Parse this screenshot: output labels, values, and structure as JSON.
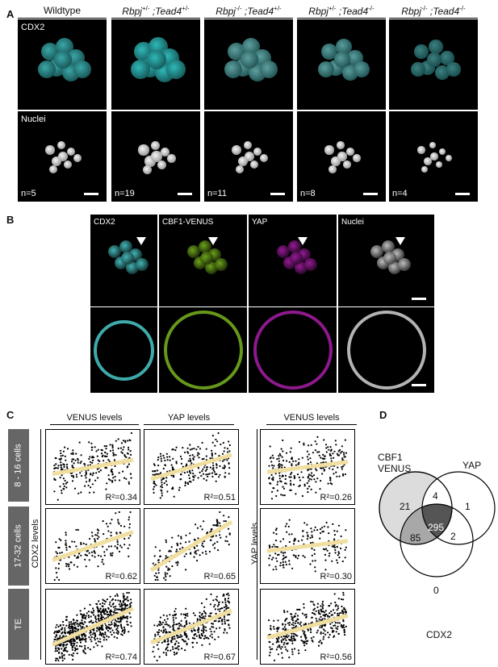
{
  "panelA": {
    "letter": "A",
    "genotypes": [
      {
        "g1": "Wildtype",
        "s1": "",
        "g2": "",
        "s2": ""
      },
      {
        "g1": "Rbpj",
        "s1": "+/-",
        "g2": " ;Tead4",
        "s2": "+/-"
      },
      {
        "g1": "Rbpj",
        "s1": "-/-",
        "g2": " ;Tead4",
        "s2": "+/-"
      },
      {
        "g1": "Rbpj",
        "s1": "+/-",
        "g2": " ;Tead4",
        "s2": "-/-"
      },
      {
        "g1": "Rbpj",
        "s1": "-/-",
        "g2": " ;Tead4",
        "s2": "-/-"
      }
    ],
    "row1_label": "CDX2",
    "row2_label": "Nuclei",
    "counts": [
      "n=5",
      "n=19",
      "n=11",
      "n=8",
      "n=4"
    ]
  },
  "panelB": {
    "letter": "B",
    "channels": [
      "CDX2",
      "CBF1-VENUS",
      "YAP",
      "Nuclei"
    ],
    "colors": {
      "cdx2": "#4fd4d4",
      "venus": "#7fbf1f",
      "yap": "#b01fb0",
      "nuclei": "#e0e0e0"
    }
  },
  "panelC": {
    "letter": "C",
    "col_heads": [
      "VENUS levels",
      "YAP levels",
      "VENUS levels"
    ],
    "row_labels": [
      "8 - 16 cells",
      "17-32 cells",
      "TE"
    ],
    "y_axis_left": "CDX2 levels",
    "y_axis_right": "YAP levels",
    "r2_values": [
      [
        "R²=0.34",
        "R²=0.51",
        "R²=0.26"
      ],
      [
        "R²=0.62",
        "R²=0.65",
        "R²=0.30"
      ],
      [
        "R²=0.74",
        "R²=0.67",
        "R²=0.56"
      ]
    ],
    "fit_color": "#f0dfa0"
  },
  "panelD": {
    "letter": "D",
    "labels": {
      "cbf1": "CBF1\nVENUS",
      "yap": "YAP",
      "cdx2": "CDX2"
    },
    "counts": {
      "cbf1_only": "21",
      "cbf1_yap": "4",
      "yap_only": "1",
      "all": "295",
      "cbf1_cdx2": "85",
      "yap_cdx2": "2",
      "cdx2_only": "0"
    }
  }
}
